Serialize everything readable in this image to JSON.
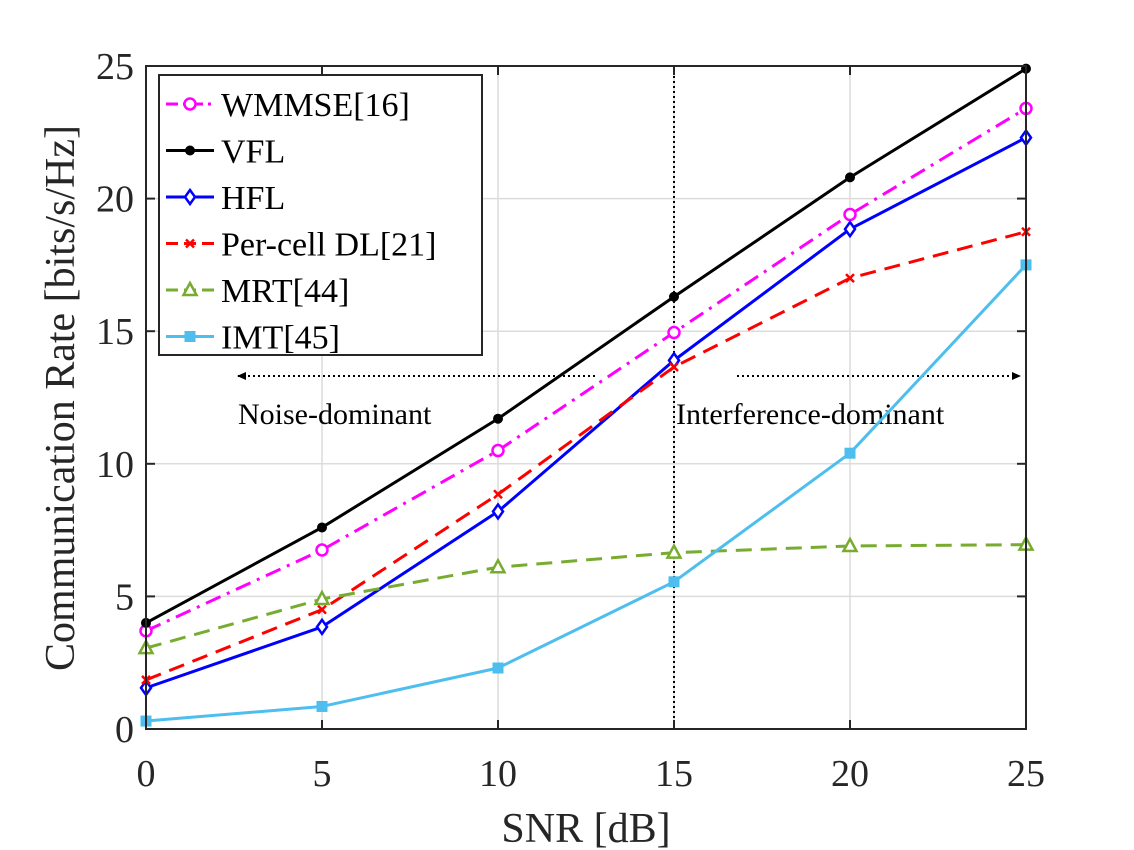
{
  "chart_data": {
    "type": "line",
    "xlabel": "SNR [dB]",
    "ylabel": "Communication Rate [bits/s/Hz]",
    "xlim": [
      0,
      25
    ],
    "ylim": [
      0,
      25
    ],
    "xticks": [
      0,
      5,
      10,
      15,
      20,
      25
    ],
    "yticks": [
      0,
      5,
      10,
      15,
      20,
      25
    ],
    "grid": true,
    "legend_position": "top-left",
    "x": [
      0,
      5,
      10,
      15,
      20,
      25
    ],
    "series": [
      {
        "name": "WMMSE[16]",
        "color": "#ff00ff",
        "dash": "dashdot",
        "marker": "circle",
        "values": [
          3.7,
          6.75,
          10.5,
          14.95,
          19.4,
          23.4
        ]
      },
      {
        "name": "VFL",
        "color": "#000000",
        "dash": "solid",
        "marker": "dot",
        "values": [
          4.0,
          7.6,
          11.7,
          16.3,
          20.8,
          24.9
        ]
      },
      {
        "name": "HFL",
        "color": "#0000ff",
        "dash": "solid",
        "marker": "diamond",
        "values": [
          1.55,
          3.85,
          8.2,
          13.9,
          18.85,
          22.3
        ]
      },
      {
        "name": "Per-cell DL[21]",
        "color": "#ff0000",
        "dash": "dashed",
        "marker": "x",
        "values": [
          1.85,
          4.5,
          8.85,
          13.65,
          17.0,
          18.75
        ]
      },
      {
        "name": "MRT[44]",
        "color": "#77ac30",
        "dash": "dashed",
        "marker": "triangle",
        "values": [
          3.05,
          4.9,
          6.1,
          6.65,
          6.9,
          6.95
        ]
      },
      {
        "name": "IMT[45]",
        "color": "#4dbeee",
        "dash": "solid",
        "marker": "square",
        "values": [
          0.3,
          0.85,
          2.3,
          5.55,
          10.4,
          17.5
        ]
      }
    ],
    "vertical_line_x": 15,
    "annotations": [
      {
        "text": "Noise-dominant",
        "arrow": "left"
      },
      {
        "text": "Interference-dominant",
        "arrow": "right"
      }
    ]
  }
}
